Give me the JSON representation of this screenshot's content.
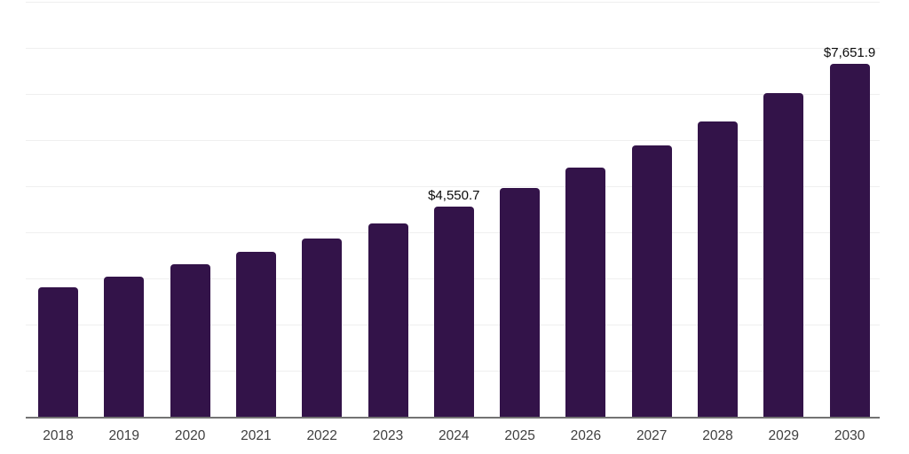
{
  "chart": {
    "colors": {
      "background": "#ffffff",
      "bar": "#331349",
      "gridline": "#efefef",
      "axis_line": "#737373",
      "tick_label": "#404040",
      "data_label": "#0a0a0a"
    }
  },
  "chart_data": {
    "type": "bar",
    "title": "",
    "xlabel": "",
    "ylabel": "",
    "categories": [
      "2018",
      "2019",
      "2020",
      "2021",
      "2022",
      "2023",
      "2024",
      "2025",
      "2026",
      "2027",
      "2028",
      "2029",
      "2030"
    ],
    "values": [
      2810,
      3040,
      3300,
      3570,
      3860,
      4200,
      4550.7,
      4970,
      5400,
      5880,
      6410,
      7020,
      7651.9
    ],
    "data_labels": [
      {
        "category": "2024",
        "text": "$4,550.7"
      },
      {
        "category": "2030",
        "text": "$7,651.9"
      }
    ],
    "ylim": [
      0,
      9000
    ],
    "gridline_interval": 1000,
    "grid": "horizontal-only",
    "y_axis_ticks_visible": false,
    "legend": "none"
  }
}
